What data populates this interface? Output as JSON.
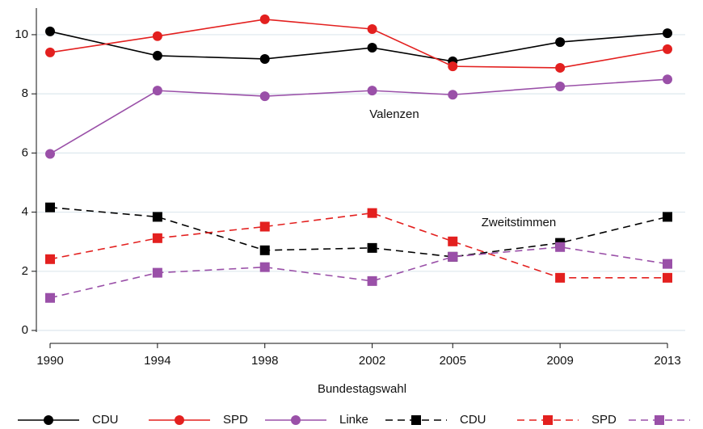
{
  "chart_data": {
    "type": "line",
    "x_label": "Bundestagswahl",
    "annotations": [
      "Valenzen",
      "Zweitstimmen"
    ],
    "x": [
      1990,
      1994,
      1998,
      2002,
      2005,
      2009,
      2013
    ],
    "xlim": [
      1990,
      2013
    ],
    "xticks": [
      1990,
      1994,
      1998,
      2002,
      2005,
      2009,
      2013
    ],
    "ylim": [
      0,
      10.9
    ],
    "yticks": [
      0,
      2,
      4,
      6,
      8,
      10
    ],
    "grid": true,
    "legend": "bottom",
    "series": [
      {
        "name": "CDU",
        "color": "#000000",
        "linestyle": "solid",
        "marker": "circle",
        "values": [
          10.11,
          9.29,
          9.18,
          9.56,
          9.1,
          9.75,
          10.05
        ]
      },
      {
        "name": "SPD",
        "color": "#e3201f",
        "linestyle": "solid",
        "marker": "circle",
        "values": [
          9.4,
          9.95,
          10.52,
          10.19,
          8.93,
          8.88,
          9.51
        ]
      },
      {
        "name": "Linke",
        "color": "#9a50a8",
        "linestyle": "solid",
        "marker": "circle",
        "values": [
          5.97,
          8.11,
          7.92,
          8.11,
          7.97,
          8.25,
          8.49
        ]
      },
      {
        "name": "CDU",
        "color": "#000000",
        "linestyle": "dashed",
        "marker": "square",
        "values": [
          4.16,
          3.84,
          2.71,
          2.79,
          2.49,
          2.96,
          3.84
        ]
      },
      {
        "name": "SPD",
        "color": "#e3201f",
        "linestyle": "dashed",
        "marker": "square",
        "values": [
          2.41,
          3.12,
          3.51,
          3.97,
          3.01,
          1.78,
          1.78
        ]
      },
      {
        "name": "Linke",
        "color": "#9a50a8",
        "linestyle": "dashed",
        "marker": "square",
        "values": [
          1.1,
          1.95,
          2.14,
          1.67,
          2.49,
          2.82,
          2.25
        ]
      }
    ]
  }
}
